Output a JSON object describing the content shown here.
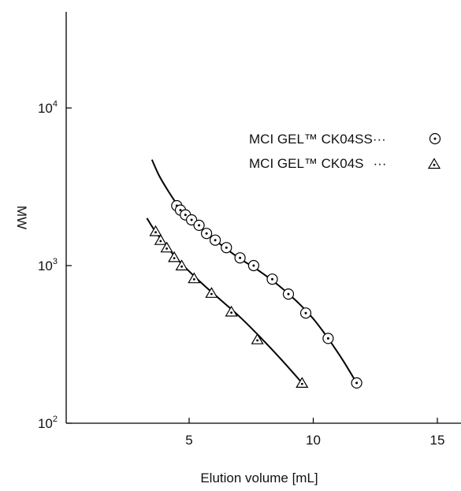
{
  "chart_data": {
    "type": "scatter",
    "title": "",
    "xlabel": "Elution volume [mL]",
    "ylabel": "MW",
    "xlim": [
      0,
      16
    ],
    "ylim": [
      100,
      40000
    ],
    "y_scale": "log",
    "x_ticks": [
      {
        "value": 5,
        "label": "5"
      },
      {
        "value": 10,
        "label": "10"
      },
      {
        "value": 15,
        "label": "15"
      }
    ],
    "y_ticks": [
      {
        "value": 100,
        "base": "10",
        "exp": "2"
      },
      {
        "value": 1000,
        "base": "10",
        "exp": "3"
      },
      {
        "value": 10000,
        "base": "10",
        "exp": "4"
      }
    ],
    "grid": false,
    "legend_position": "top-right",
    "series": [
      {
        "name": "MCI GEL™ CK04SS",
        "legend_suffix": "···",
        "marker": "circle-dot",
        "x": [
          4.5,
          4.65,
          4.85,
          5.1,
          5.4,
          5.7,
          6.05,
          6.5,
          7.05,
          7.6,
          8.35,
          9.0,
          9.7,
          10.6,
          11.75
        ],
        "y": [
          2400,
          2250,
          2100,
          1950,
          1800,
          1600,
          1450,
          1300,
          1120,
          1000,
          820,
          660,
          500,
          345,
          180
        ],
        "curve_x": [
          3.5,
          3.8,
          4.2,
          4.6,
          5.0,
          5.6,
          6.3,
          7.0,
          7.8,
          8.6,
          9.4,
          10.0,
          10.6,
          11.2,
          11.75
        ],
        "curve_y": [
          4700,
          3700,
          2900,
          2350,
          2000,
          1650,
          1350,
          1120,
          930,
          750,
          580,
          460,
          345,
          250,
          180
        ]
      },
      {
        "name": "MCI GEL™ CK04S",
        "legend_suffix": "···",
        "marker": "triangle-dot",
        "x": [
          3.65,
          3.85,
          4.1,
          4.4,
          4.7,
          5.2,
          5.9,
          6.7,
          7.75,
          9.55
        ],
        "y": [
          1650,
          1450,
          1300,
          1130,
          1000,
          830,
          670,
          510,
          340,
          180
        ],
        "curve_x": [
          3.3,
          3.6,
          4.0,
          4.5,
          5.0,
          5.6,
          6.3,
          7.0,
          7.8,
          8.7,
          9.55
        ],
        "curve_y": [
          2000,
          1680,
          1380,
          1110,
          920,
          750,
          600,
          480,
          360,
          255,
          180
        ]
      }
    ]
  }
}
